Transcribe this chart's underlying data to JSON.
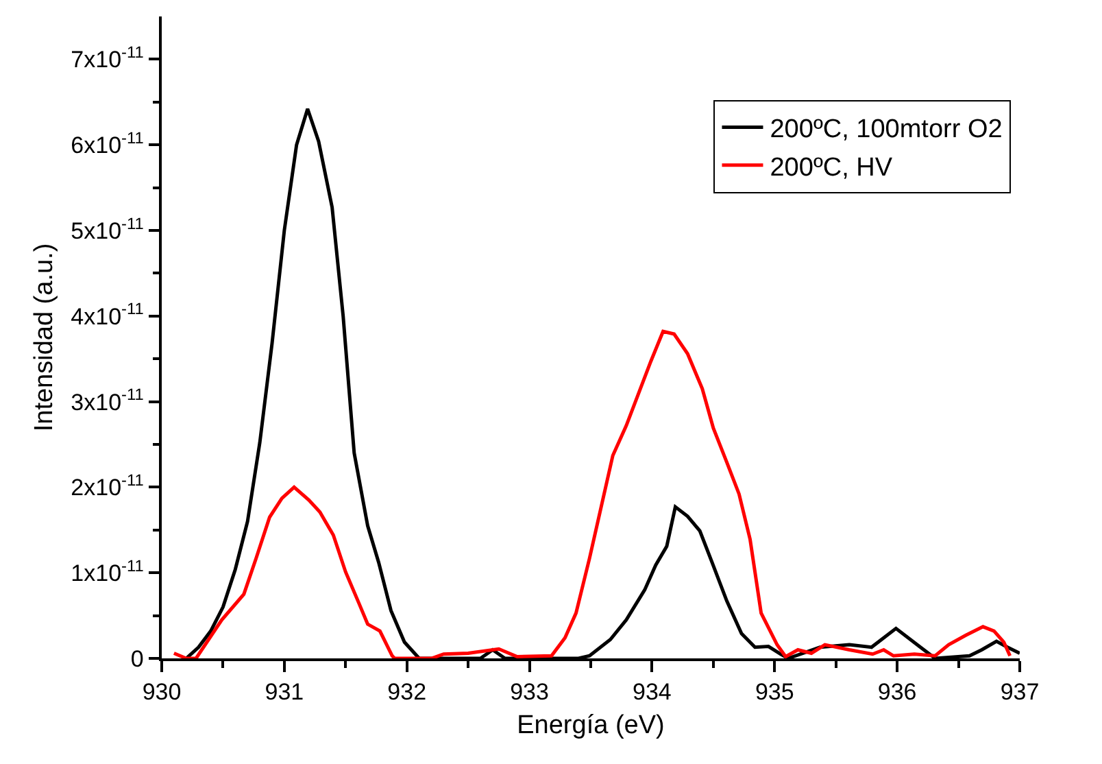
{
  "chart_data": {
    "type": "line",
    "xlabel": "Energía (eV)",
    "ylabel": "Intensidad (a.u.)",
    "xlim": [
      930,
      937
    ],
    "xticks": [
      930,
      931,
      932,
      933,
      934,
      935,
      936,
      937
    ],
    "ylim": [
      0,
      7.5e-11
    ],
    "yticks": [
      {
        "value": 0,
        "label": "0"
      },
      {
        "value": 1e-11,
        "label": "1x10$^{-11}$"
      },
      {
        "value": 2e-11,
        "label": "2x10$^{-11}$"
      },
      {
        "value": 3e-11,
        "label": "3x10$^{-11}$"
      },
      {
        "value": 4e-11,
        "label": "4x10$^{-11}$"
      },
      {
        "value": 5e-11,
        "label": "5x10$^{-11}$"
      },
      {
        "value": 6e-11,
        "label": "6x10$^{-11}$"
      },
      {
        "value": 7e-11,
        "label": "7x10$^{-11}$"
      }
    ],
    "legend": "top right",
    "marker": "none",
    "line_style": "solid",
    "series": [
      {
        "name": "200ºC, 100mtorr O2",
        "color": "#000000",
        "x": [
          930.2,
          930.3,
          930.4,
          930.5,
          930.6,
          930.7,
          930.8,
          930.9,
          931.0,
          931.1,
          931.19,
          931.28,
          931.39,
          931.48,
          931.57,
          931.68,
          931.77,
          931.87,
          931.98,
          932.1,
          932.6,
          932.7,
          932.8,
          933.4,
          933.49,
          933.66,
          933.79,
          933.94,
          934.03,
          934.12,
          934.19,
          934.29,
          934.39,
          934.49,
          934.61,
          934.73,
          934.84,
          934.95,
          935.05,
          935.11,
          935.37,
          935.61,
          935.79,
          935.99,
          936.19,
          936.31,
          936.59,
          936.69,
          936.81,
          936.9,
          937.0
        ],
        "values": [
          0,
          1.3e-12,
          3.2e-12,
          6e-12,
          1.04e-11,
          1.6e-11,
          2.52e-11,
          3.68e-11,
          5e-11,
          6e-11,
          6.42e-11,
          6.04e-11,
          5.27e-11,
          4e-11,
          2.4e-11,
          1.55e-11,
          1.12e-11,
          5.6e-12,
          1.9e-12,
          0,
          0,
          1e-12,
          0,
          0,
          3e-13,
          2.2e-12,
          4.5e-12,
          8e-12,
          1.09e-11,
          1.31e-11,
          1.77e-11,
          1.66e-11,
          1.49e-11,
          1.12e-11,
          6.7e-12,
          2.9e-12,
          1.3e-12,
          1.4e-12,
          5e-13,
          0,
          1.3e-12,
          1.6e-12,
          1.3e-12,
          3.5e-12,
          1.3e-12,
          0,
          3e-13,
          1e-12,
          2e-12,
          1.3e-12,
          6e-13
        ]
      },
      {
        "name": "200ºC, HV",
        "color": "#ff0000",
        "x": [
          930.1,
          930.2,
          930.28,
          930.49,
          930.67,
          930.77,
          930.88,
          930.98,
          931.08,
          931.2,
          931.29,
          931.4,
          931.5,
          931.61,
          931.68,
          931.78,
          931.88,
          931.9,
          932.2,
          932.3,
          932.5,
          932.75,
          932.9,
          933.18,
          933.29,
          933.38,
          933.49,
          933.68,
          933.79,
          933.99,
          934.09,
          934.18,
          934.29,
          934.41,
          934.5,
          934.61,
          934.71,
          934.8,
          934.89,
          935.02,
          935.09,
          935.19,
          935.3,
          935.41,
          935.61,
          935.8,
          935.89,
          935.97,
          936.14,
          936.31,
          936.42,
          936.56,
          936.7,
          936.79,
          936.87,
          936.92
        ],
        "values": [
          6e-13,
          0,
          0,
          4.5e-12,
          7.5e-12,
          1.17e-11,
          1.65e-11,
          1.87e-11,
          2e-11,
          1.85e-11,
          1.71e-11,
          1.44e-11,
          1.01e-11,
          6.4e-12,
          4e-12,
          3.2e-12,
          3e-13,
          0,
          0,
          5e-13,
          6e-13,
          1.1e-12,
          2e-13,
          3e-13,
          2.4e-12,
          5.3e-12,
          1.17e-11,
          2.37e-11,
          2.72e-11,
          3.47e-11,
          3.82e-11,
          3.79e-11,
          3.56e-11,
          3.15e-11,
          2.69e-11,
          2.29e-11,
          1.92e-11,
          1.39e-11,
          5.3e-12,
          1.6e-12,
          2e-13,
          1e-12,
          6e-13,
          1.6e-12,
          1e-12,
          5e-13,
          1e-12,
          3e-13,
          5e-13,
          3e-13,
          1.6e-12,
          2.7e-12,
          3.7e-12,
          3.2e-12,
          1.9e-12,
          3e-13
        ]
      }
    ]
  }
}
